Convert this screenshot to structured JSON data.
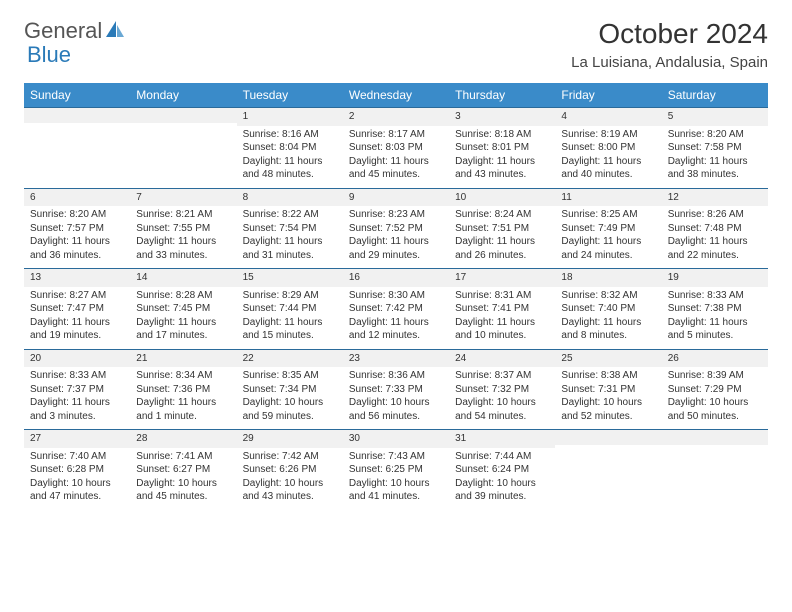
{
  "logo": {
    "part1": "General",
    "part2": "Blue"
  },
  "title": "October 2024",
  "location": "La Luisiana, Andalusia, Spain",
  "colors": {
    "header_bg": "#3a8bc9",
    "divider": "#2a6a9a",
    "alt_row": "#f1f1f1",
    "text": "#333333",
    "logo_blue": "#2a7ab8"
  },
  "typography": {
    "title_fontsize": 28,
    "location_fontsize": 15,
    "day_header_fontsize": 12,
    "cell_fontsize": 10
  },
  "day_headers": [
    "Sunday",
    "Monday",
    "Tuesday",
    "Wednesday",
    "Thursday",
    "Friday",
    "Saturday"
  ],
  "weeks": [
    [
      null,
      null,
      {
        "n": "1",
        "sr": "Sunrise: 8:16 AM",
        "ss": "Sunset: 8:04 PM",
        "dl": "Daylight: 11 hours and 48 minutes."
      },
      {
        "n": "2",
        "sr": "Sunrise: 8:17 AM",
        "ss": "Sunset: 8:03 PM",
        "dl": "Daylight: 11 hours and 45 minutes."
      },
      {
        "n": "3",
        "sr": "Sunrise: 8:18 AM",
        "ss": "Sunset: 8:01 PM",
        "dl": "Daylight: 11 hours and 43 minutes."
      },
      {
        "n": "4",
        "sr": "Sunrise: 8:19 AM",
        "ss": "Sunset: 8:00 PM",
        "dl": "Daylight: 11 hours and 40 minutes."
      },
      {
        "n": "5",
        "sr": "Sunrise: 8:20 AM",
        "ss": "Sunset: 7:58 PM",
        "dl": "Daylight: 11 hours and 38 minutes."
      }
    ],
    [
      {
        "n": "6",
        "sr": "Sunrise: 8:20 AM",
        "ss": "Sunset: 7:57 PM",
        "dl": "Daylight: 11 hours and 36 minutes."
      },
      {
        "n": "7",
        "sr": "Sunrise: 8:21 AM",
        "ss": "Sunset: 7:55 PM",
        "dl": "Daylight: 11 hours and 33 minutes."
      },
      {
        "n": "8",
        "sr": "Sunrise: 8:22 AM",
        "ss": "Sunset: 7:54 PM",
        "dl": "Daylight: 11 hours and 31 minutes."
      },
      {
        "n": "9",
        "sr": "Sunrise: 8:23 AM",
        "ss": "Sunset: 7:52 PM",
        "dl": "Daylight: 11 hours and 29 minutes."
      },
      {
        "n": "10",
        "sr": "Sunrise: 8:24 AM",
        "ss": "Sunset: 7:51 PM",
        "dl": "Daylight: 11 hours and 26 minutes."
      },
      {
        "n": "11",
        "sr": "Sunrise: 8:25 AM",
        "ss": "Sunset: 7:49 PM",
        "dl": "Daylight: 11 hours and 24 minutes."
      },
      {
        "n": "12",
        "sr": "Sunrise: 8:26 AM",
        "ss": "Sunset: 7:48 PM",
        "dl": "Daylight: 11 hours and 22 minutes."
      }
    ],
    [
      {
        "n": "13",
        "sr": "Sunrise: 8:27 AM",
        "ss": "Sunset: 7:47 PM",
        "dl": "Daylight: 11 hours and 19 minutes."
      },
      {
        "n": "14",
        "sr": "Sunrise: 8:28 AM",
        "ss": "Sunset: 7:45 PM",
        "dl": "Daylight: 11 hours and 17 minutes."
      },
      {
        "n": "15",
        "sr": "Sunrise: 8:29 AM",
        "ss": "Sunset: 7:44 PM",
        "dl": "Daylight: 11 hours and 15 minutes."
      },
      {
        "n": "16",
        "sr": "Sunrise: 8:30 AM",
        "ss": "Sunset: 7:42 PM",
        "dl": "Daylight: 11 hours and 12 minutes."
      },
      {
        "n": "17",
        "sr": "Sunrise: 8:31 AM",
        "ss": "Sunset: 7:41 PM",
        "dl": "Daylight: 11 hours and 10 minutes."
      },
      {
        "n": "18",
        "sr": "Sunrise: 8:32 AM",
        "ss": "Sunset: 7:40 PM",
        "dl": "Daylight: 11 hours and 8 minutes."
      },
      {
        "n": "19",
        "sr": "Sunrise: 8:33 AM",
        "ss": "Sunset: 7:38 PM",
        "dl": "Daylight: 11 hours and 5 minutes."
      }
    ],
    [
      {
        "n": "20",
        "sr": "Sunrise: 8:33 AM",
        "ss": "Sunset: 7:37 PM",
        "dl": "Daylight: 11 hours and 3 minutes."
      },
      {
        "n": "21",
        "sr": "Sunrise: 8:34 AM",
        "ss": "Sunset: 7:36 PM",
        "dl": "Daylight: 11 hours and 1 minute."
      },
      {
        "n": "22",
        "sr": "Sunrise: 8:35 AM",
        "ss": "Sunset: 7:34 PM",
        "dl": "Daylight: 10 hours and 59 minutes."
      },
      {
        "n": "23",
        "sr": "Sunrise: 8:36 AM",
        "ss": "Sunset: 7:33 PM",
        "dl": "Daylight: 10 hours and 56 minutes."
      },
      {
        "n": "24",
        "sr": "Sunrise: 8:37 AM",
        "ss": "Sunset: 7:32 PM",
        "dl": "Daylight: 10 hours and 54 minutes."
      },
      {
        "n": "25",
        "sr": "Sunrise: 8:38 AM",
        "ss": "Sunset: 7:31 PM",
        "dl": "Daylight: 10 hours and 52 minutes."
      },
      {
        "n": "26",
        "sr": "Sunrise: 8:39 AM",
        "ss": "Sunset: 7:29 PM",
        "dl": "Daylight: 10 hours and 50 minutes."
      }
    ],
    [
      {
        "n": "27",
        "sr": "Sunrise: 7:40 AM",
        "ss": "Sunset: 6:28 PM",
        "dl": "Daylight: 10 hours and 47 minutes."
      },
      {
        "n": "28",
        "sr": "Sunrise: 7:41 AM",
        "ss": "Sunset: 6:27 PM",
        "dl": "Daylight: 10 hours and 45 minutes."
      },
      {
        "n": "29",
        "sr": "Sunrise: 7:42 AM",
        "ss": "Sunset: 6:26 PM",
        "dl": "Daylight: 10 hours and 43 minutes."
      },
      {
        "n": "30",
        "sr": "Sunrise: 7:43 AM",
        "ss": "Sunset: 6:25 PM",
        "dl": "Daylight: 10 hours and 41 minutes."
      },
      {
        "n": "31",
        "sr": "Sunrise: 7:44 AM",
        "ss": "Sunset: 6:24 PM",
        "dl": "Daylight: 10 hours and 39 minutes."
      },
      null,
      null
    ]
  ]
}
